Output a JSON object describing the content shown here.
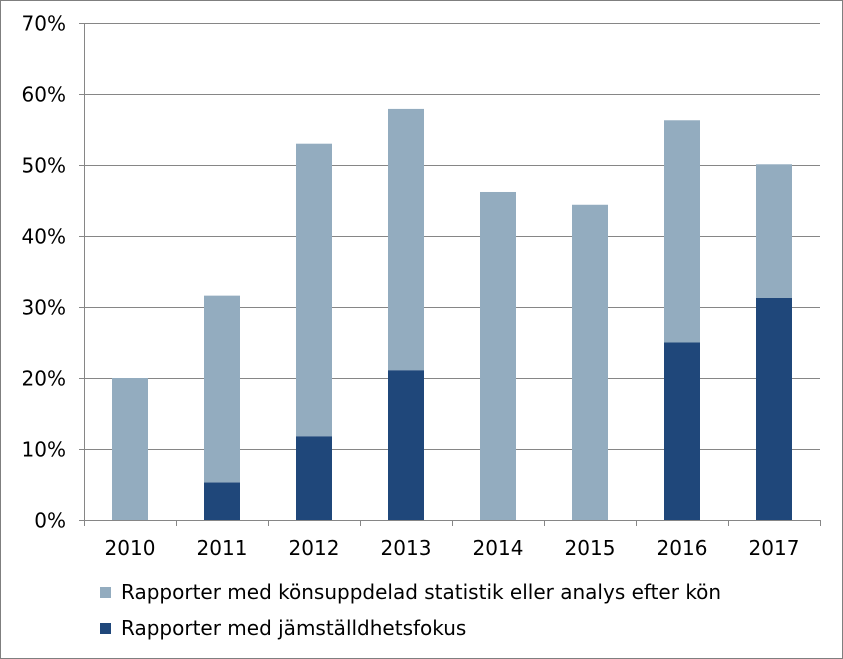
{
  "chart_data": {
    "type": "bar",
    "stacked": true,
    "categories": [
      "2010",
      "2011",
      "2012",
      "2013",
      "2014",
      "2015",
      "2016",
      "2017"
    ],
    "series": [
      {
        "name": "Rapporter med könsuppdelad statistik eller analys efter kön",
        "color": "#93acbf",
        "values": [
          20.0,
          26.3,
          41.2,
          36.8,
          46.2,
          44.4,
          31.3,
          18.8
        ]
      },
      {
        "name": "Rapporter med jämställdhetsfokus",
        "color": "#1f477a",
        "values": [
          0,
          5.3,
          11.8,
          21.1,
          0,
          0,
          25.0,
          31.3
        ]
      }
    ],
    "totals": [
      20.0,
      31.6,
      52.9,
      57.9,
      46.2,
      44.4,
      56.3,
      50.0
    ],
    "ylim": [
      0,
      70
    ],
    "yticks": [
      "0%",
      "10%",
      "20%",
      "30%",
      "40%",
      "50%",
      "60%",
      "70%"
    ],
    "title": "",
    "xlabel": "",
    "ylabel": "",
    "grid": true,
    "legend_position": "bottom",
    "gridline_color": "#868686"
  }
}
